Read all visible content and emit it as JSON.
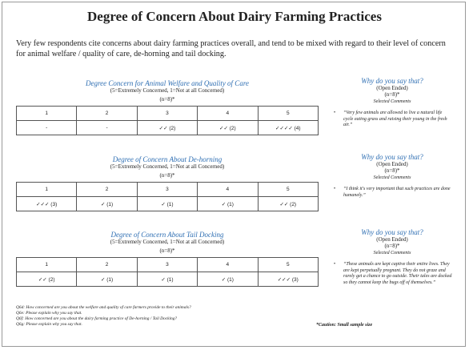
{
  "title": "Degree of Concern About Dairy Farming Practices",
  "intro": "Very few respondents cite concerns about dairy farming practices overall, and tend to be mixed with regard to their level of concern for animal welfare / quality of care, de-horning and tail docking.",
  "sections": [
    {
      "heading": "Degree Concern for Animal Welfare and Quality of Care",
      "scale": "(5=Extremely Concerned, 1=Not at all Concerned)",
      "n": "(n=8)*",
      "table": {
        "header": [
          "1",
          "2",
          "3",
          "4",
          "5"
        ],
        "row": [
          "-",
          "-",
          "✓✓ (2)",
          "✓✓ (2)",
          "✓✓✓✓ (4)"
        ]
      },
      "side": {
        "question": "Why do you say that?",
        "type": "(Open Ended)",
        "n": "(n=8)*",
        "label": "Selected Comments",
        "comment": "“Very few animals are allowed to live a natural life cycle eating grass and raising their young in the fresh air.”"
      }
    },
    {
      "heading": "Degree of Concern About De-horning",
      "scale": "(5=Extremely Concerned, 1=Not at all Concerned)",
      "n": "(n=8)*",
      "table": {
        "header": [
          "1",
          "2",
          "3",
          "4",
          "5"
        ],
        "row": [
          "✓✓✓ (3)",
          "✓ (1)",
          "✓ (1)",
          "✓ (1)",
          "✓✓ (2)"
        ]
      },
      "side": {
        "question": "Why do you say that?",
        "type": "(Open Ended)",
        "n": "(n=8)*",
        "label": "Selected Comments",
        "comment": "“I think it's very important that such practices are done humanely.”"
      }
    },
    {
      "heading": "Degree of Concern About Tail Docking",
      "scale": "(5=Extremely Concerned, 1=Not at all Concerned)",
      "n": "(n=8)*",
      "table": {
        "header": [
          "1",
          "2",
          "3",
          "4",
          "5"
        ],
        "row": [
          "✓✓ (2)",
          "✓ (1)",
          "✓ (1)",
          "✓ (1)",
          "✓✓✓ (3)"
        ]
      },
      "side": {
        "question": "Why do you say that?",
        "type": "(Open Ended)",
        "n": "(n=8)*",
        "label": "Selected Comments",
        "comment": "“These animals are kept captive their entire lives. They are kept perpetually pregnant. They do not graze and rarely get a chance to go outside. Their tales are docked so they cannot keep the bugs off of themselves.”"
      }
    }
  ],
  "footnotes": [
    "Q6d: How concerned are you about the welfare and quality of care farmers provide to their animals?",
    "Q6e: Please explain why you say that.",
    "Q6f: How concerned are you about the dairy farming practice of De-horning / Tail Docking?",
    "Q6g: Please explain why you say that."
  ],
  "caution": "*Caution: Small sample size"
}
